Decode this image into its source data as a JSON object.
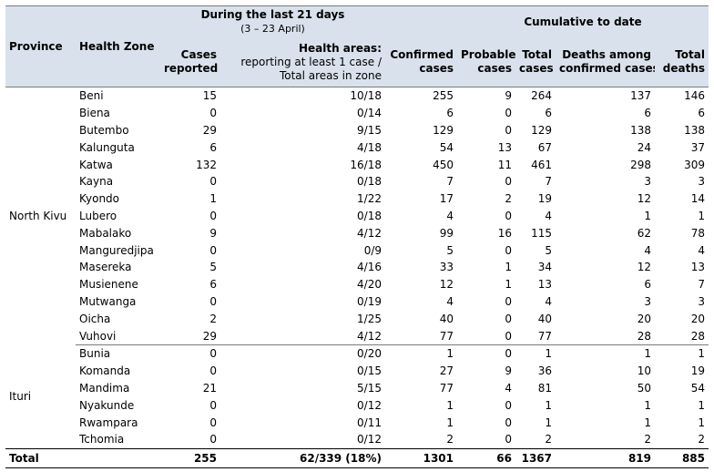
{
  "headers": {
    "province": "Province",
    "health_zone": "Health Zone",
    "last21_title": "During the last 21 days",
    "last21_dates": "(3 – 23 April)",
    "cumulative_title": "Cumulative to date",
    "cases_reported_1": "Cases",
    "cases_reported_2": "reported",
    "health_areas_1": "Health areas:",
    "health_areas_2": "reporting at least 1 case /",
    "health_areas_3": "Total areas in zone",
    "confirmed_1": "Confirmed",
    "confirmed_2": "cases",
    "probable_1": "Probable",
    "probable_2": "cases",
    "total_cases_1": "Total",
    "total_cases_2": "cases",
    "deaths_confirmed_1": "Deaths among",
    "deaths_confirmed_2": "confirmed cases",
    "total_deaths_1": "Total",
    "total_deaths_2": "deaths"
  },
  "provinces": [
    {
      "name": "North Kivu",
      "rows": [
        [
          "Beni",
          "15",
          "10/18",
          "255",
          "9",
          "264",
          "137",
          "146"
        ],
        [
          "Biena",
          "0",
          "0/14",
          "6",
          "0",
          "6",
          "6",
          "6"
        ],
        [
          "Butembo",
          "29",
          "9/15",
          "129",
          "0",
          "129",
          "138",
          "138"
        ],
        [
          "Kalunguta",
          "6",
          "4/18",
          "54",
          "13",
          "67",
          "24",
          "37"
        ],
        [
          "Katwa",
          "132",
          "16/18",
          "450",
          "11",
          "461",
          "298",
          "309"
        ],
        [
          "Kayna",
          "0",
          "0/18",
          "7",
          "0",
          "7",
          "3",
          "3"
        ],
        [
          "Kyondo",
          "1",
          "1/22",
          "17",
          "2",
          "19",
          "12",
          "14"
        ],
        [
          "Lubero",
          "0",
          "0/18",
          "4",
          "0",
          "4",
          "1",
          "1"
        ],
        [
          "Mabalako",
          "9",
          "4/12",
          "99",
          "16",
          "115",
          "62",
          "78"
        ],
        [
          "Manguredjipa",
          "0",
          "0/9",
          "5",
          "0",
          "5",
          "4",
          "4"
        ],
        [
          "Masereka",
          "5",
          "4/16",
          "33",
          "1",
          "34",
          "12",
          "13"
        ],
        [
          "Musienene",
          "6",
          "4/20",
          "12",
          "1",
          "13",
          "6",
          "7"
        ],
        [
          "Mutwanga",
          "0",
          "0/19",
          "4",
          "0",
          "4",
          "3",
          "3"
        ],
        [
          "Oicha",
          "2",
          "1/25",
          "40",
          "0",
          "40",
          "20",
          "20"
        ],
        [
          "Vuhovi",
          "29",
          "4/12",
          "77",
          "0",
          "77",
          "28",
          "28"
        ]
      ]
    },
    {
      "name": "Ituri",
      "rows": [
        [
          "Bunia",
          "0",
          "0/20",
          "1",
          "0",
          "1",
          "1",
          "1"
        ],
        [
          "Komanda",
          "0",
          "0/15",
          "27",
          "9",
          "36",
          "10",
          "19"
        ],
        [
          "Mandima",
          "21",
          "5/15",
          "77",
          "4",
          "81",
          "50",
          "54"
        ],
        [
          "Nyakunde",
          "0",
          "0/12",
          "1",
          "0",
          "1",
          "1",
          "1"
        ],
        [
          "Rwampara",
          "0",
          "0/11",
          "1",
          "0",
          "1",
          "1",
          "1"
        ],
        [
          "Tchomia",
          "0",
          "0/12",
          "2",
          "0",
          "2",
          "2",
          "2"
        ]
      ]
    }
  ],
  "total": {
    "label": "Total",
    "cases_reported": "255",
    "health_areas": "62/339 (18%)",
    "confirmed": "1301",
    "probable": "66",
    "total_cases": "1367",
    "deaths_confirmed": "819",
    "total_deaths": "885"
  }
}
